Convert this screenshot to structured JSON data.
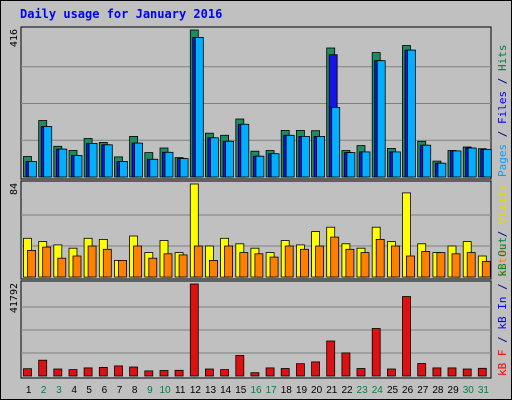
{
  "chart_data": {
    "type": "bar",
    "title": "Daily usage for January 2016",
    "days": [
      "1",
      "2",
      "3",
      "4",
      "5",
      "6",
      "7",
      "8",
      "9",
      "10",
      "11",
      "12",
      "13",
      "14",
      "15",
      "16",
      "17",
      "18",
      "19",
      "20",
      "21",
      "22",
      "23",
      "24",
      "25",
      "26",
      "27",
      "28",
      "29",
      "30",
      "31"
    ],
    "weekend_days": [
      2,
      3,
      9,
      10,
      16,
      17,
      23,
      24,
      30,
      31
    ],
    "panels": [
      {
        "name": "hits-files-pages",
        "ymax_label": "416",
        "ymax": 416,
        "side_labels": [
          {
            "text": "Pages",
            "color": "#00a0ff"
          },
          {
            "text": " / ",
            "color": "#000080"
          },
          {
            "text": "Files",
            "color": "#0000ff"
          },
          {
            "text": " / ",
            "color": "#000080"
          },
          {
            "text": "Hits",
            "color": "#008040"
          }
        ],
        "series": [
          {
            "name": "Hits",
            "color": "#1e8b60",
            "values": [
              58,
              160,
              87,
              75,
              109,
              98,
              57,
              115,
              69,
              82,
              55,
              416,
              124,
              118,
              164,
              73,
              75,
              132,
              132,
              131,
              365,
              75,
              89,
              352,
              81,
              372,
              101,
              45,
              75,
              85,
              80
            ]
          },
          {
            "name": "Files",
            "color": "#1515e8",
            "values": [
              44,
              143,
              79,
              61,
              95,
              91,
              44,
              96,
              50,
              70,
              52,
              395,
              111,
              101,
              149,
              59,
              66,
              118,
              115,
              115,
              346,
              69,
              71,
              329,
              71,
              359,
              90,
              39,
              74,
              82,
              78
            ]
          },
          {
            "name": "Pages",
            "color": "#00b0ff",
            "values": [
              44,
              143,
              79,
              61,
              95,
              91,
              44,
              96,
              50,
              70,
              52,
              395,
              111,
              101,
              149,
              59,
              66,
              118,
              115,
              115,
              197,
              69,
              71,
              329,
              71,
              359,
              90,
              39,
              74,
              82,
              78
            ]
          }
        ]
      },
      {
        "name": "visits-sites",
        "ymax_label": "84",
        "ymax": 84,
        "side_labels": [
          {
            "text": "Sites",
            "color": "#ff8000"
          },
          {
            "text": " / ",
            "color": "#000080"
          },
          {
            "text": "Visits",
            "color": "#e8d800"
          }
        ],
        "series": [
          {
            "name": "Visits",
            "color": "#ffff00",
            "values": [
              35,
              32,
              29,
              26,
              35,
              34,
              15,
              37,
              22,
              33,
              22,
              84,
              28,
              35,
              30,
              26,
              22,
              33,
              29,
              41,
              45,
              30,
              26,
              45,
              32,
              76,
              30,
              22,
              28,
              32,
              19
            ]
          },
          {
            "name": "Sites",
            "color": "#ff8000",
            "values": [
              24,
              27,
              17,
              19,
              28,
              25,
              15,
              28,
              17,
              21,
              20,
              28,
              15,
              28,
              22,
              21,
              18,
              28,
              25,
              28,
              36,
              25,
              22,
              34,
              28,
              19,
              23,
              22,
              21,
              22,
              14
            ]
          }
        ]
      },
      {
        "name": "kbytes",
        "ymax_label": "41792",
        "ymax": 41792,
        "side_labels": [
          {
            "text": "kB F",
            "color": "#ff0000"
          },
          {
            "text": " / ",
            "color": "#000080"
          },
          {
            "text": "kB In",
            "color": "#0000ff"
          },
          {
            "text": " / ",
            "color": "#000080"
          },
          {
            "text": "kB Out",
            "color": "#008040"
          }
        ],
        "series": [
          {
            "name": "kB F",
            "color": "#dd1111",
            "values": [
              3300,
              7200,
              3200,
              2900,
              3700,
              3900,
              4600,
              4100,
              2300,
              2500,
              2600,
              41792,
              3200,
              2900,
              9300,
              1500,
              3700,
              3400,
              5600,
              6400,
              15900,
              10500,
              3400,
              21600,
              3200,
              36100,
              5700,
              3700,
              3700,
              3200,
              3500
            ]
          }
        ]
      }
    ]
  }
}
